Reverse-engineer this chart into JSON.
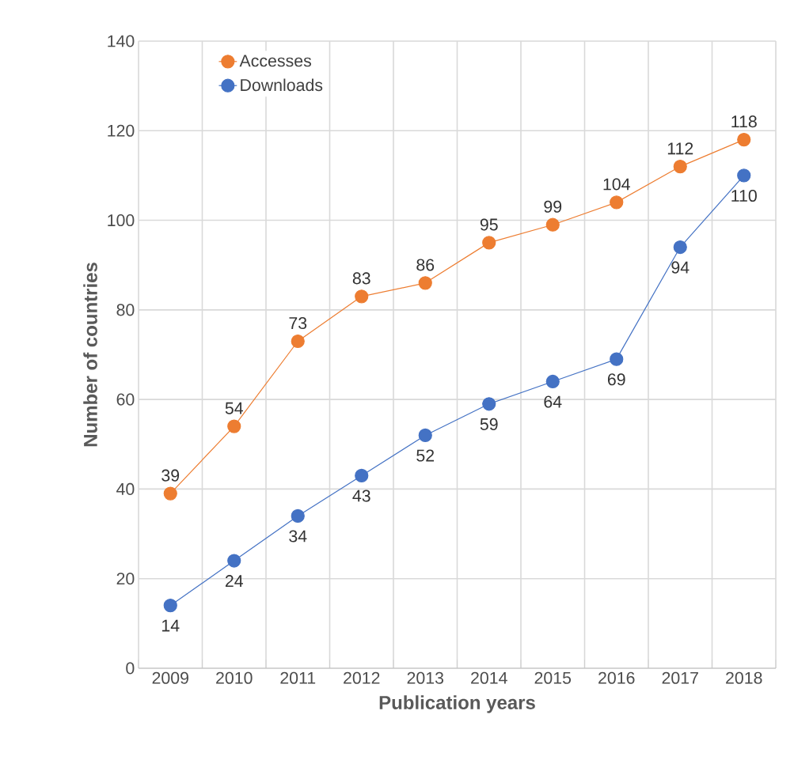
{
  "chart_data": {
    "type": "line",
    "xlabel": "Publication years",
    "ylabel": "Number of countries",
    "categories": [
      "2009",
      "2010",
      "2011",
      "2012",
      "2013",
      "2014",
      "2015",
      "2016",
      "2017",
      "2018"
    ],
    "series": [
      {
        "name": "Accesses",
        "color": "#ed7d31",
        "values": [
          39,
          54,
          73,
          83,
          86,
          95,
          99,
          104,
          112,
          118
        ]
      },
      {
        "name": "Downloads",
        "color": "#4472c4",
        "values": [
          14,
          24,
          34,
          43,
          52,
          59,
          64,
          69,
          94,
          110
        ]
      }
    ],
    "ylim": [
      0,
      140
    ],
    "yticks": [
      0,
      20,
      40,
      60,
      80,
      100,
      120,
      140
    ],
    "grid": true,
    "legend": "top left",
    "marker": "circle",
    "line_style": "solid",
    "data_labels": true
  }
}
